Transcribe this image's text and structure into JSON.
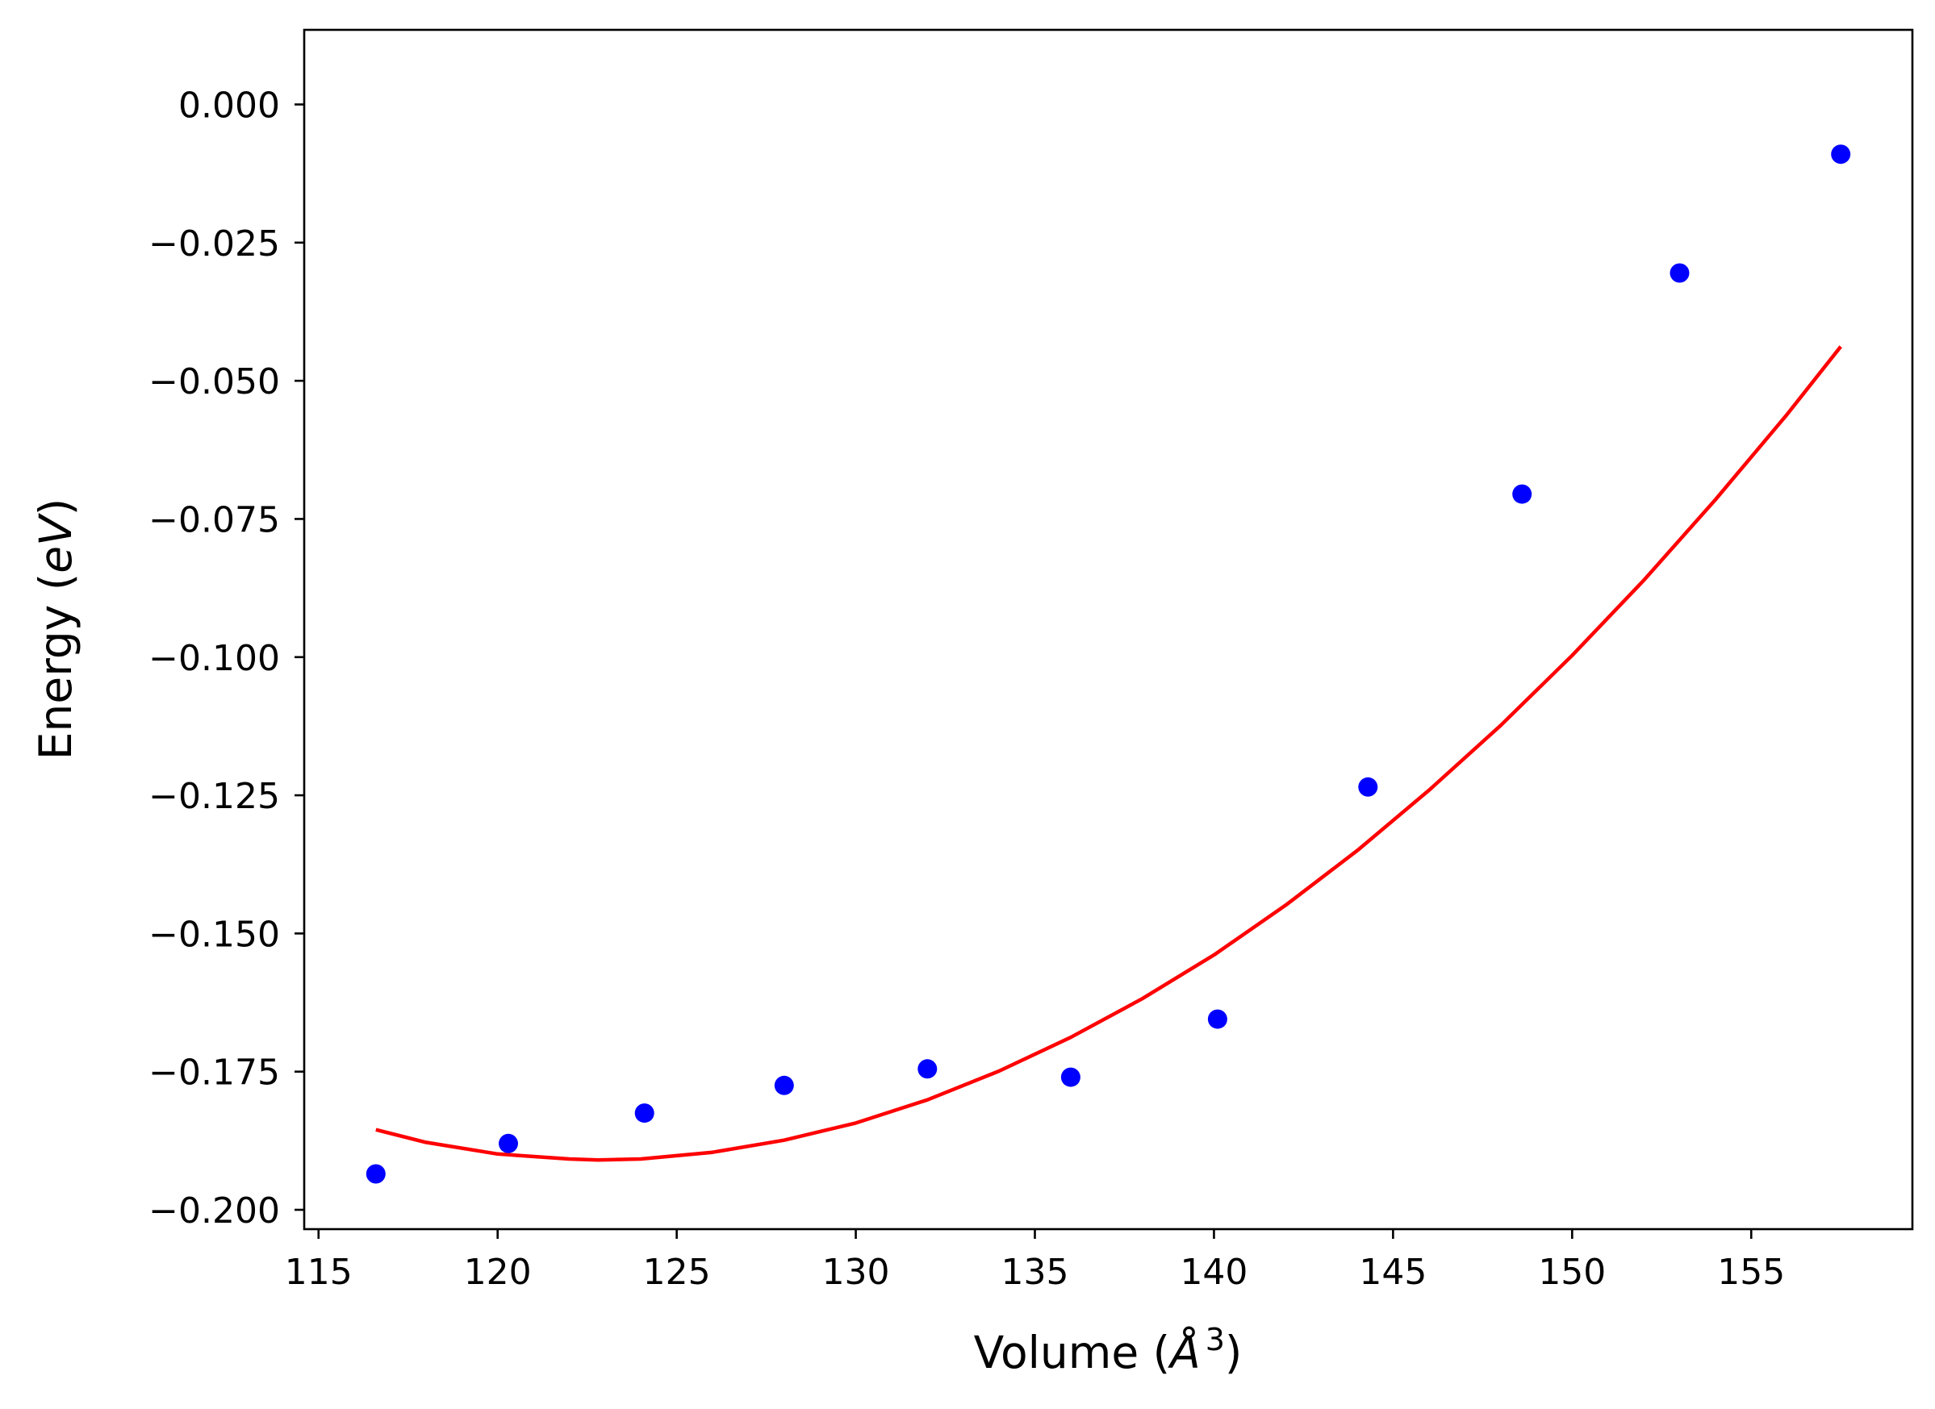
{
  "chart_data": {
    "type": "scatter",
    "xlabel": "Volume",
    "xlabel_unit": "Å",
    "xlabel_unit_exponent": "3",
    "ylabel": "Energy",
    "ylabel_unit": "eV",
    "xlim": [
      114.6,
      159.5
    ],
    "ylim": [
      -0.2035,
      0.0135
    ],
    "xticks": [
      115,
      120,
      125,
      130,
      135,
      140,
      145,
      150,
      155
    ],
    "xtick_labels": [
      "115",
      "120",
      "125",
      "130",
      "135",
      "140",
      "145",
      "150",
      "155"
    ],
    "yticks": [
      0.0,
      -0.025,
      -0.05,
      -0.075,
      -0.1,
      -0.125,
      -0.15,
      -0.175,
      -0.2
    ],
    "ytick_labels": [
      "0.000",
      "−0.025",
      "−0.050",
      "−0.075",
      "−0.100",
      "−0.125",
      "−0.150",
      "−0.175",
      "−0.200"
    ],
    "grid": false,
    "series": [
      {
        "kind": "points",
        "color": "#0000ff",
        "x": [
          116.6,
          120.3,
          124.1,
          128.0,
          132.0,
          136.0,
          140.1,
          144.3,
          148.6,
          153.0,
          157.5
        ],
        "y": [
          -0.1935,
          -0.188,
          -0.1825,
          -0.1775,
          -0.1745,
          -0.176,
          -0.1655,
          -0.1235,
          -0.0705,
          -0.0305,
          -0.009
        ]
      },
      {
        "kind": "fit-curve",
        "color": "#ff0000",
        "x": [
          116.6,
          118.0,
          120.0,
          122.0,
          122.8,
          124.0,
          126.0,
          128.0,
          130.0,
          132.0,
          134.0,
          136.0,
          138.0,
          140.0,
          142.0,
          144.0,
          146.0,
          148.0,
          150.0,
          152.0,
          154.0,
          156.0,
          157.5
        ],
        "y": [
          -0.1855,
          -0.1878,
          -0.1899,
          -0.1908,
          -0.191,
          -0.1908,
          -0.1896,
          -0.1874,
          -0.1843,
          -0.1801,
          -0.1749,
          -0.1688,
          -0.1618,
          -0.1539,
          -0.1449,
          -0.135,
          -0.1241,
          -0.1124,
          -0.0997,
          -0.0861,
          -0.0715,
          -0.0561,
          -0.0438
        ]
      }
    ]
  }
}
